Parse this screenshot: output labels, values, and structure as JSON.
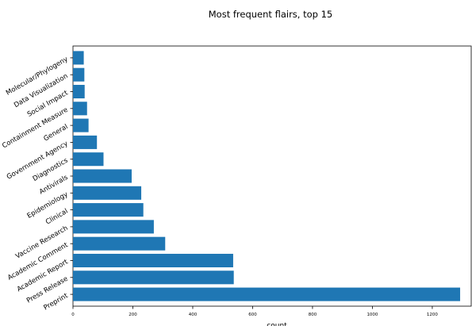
{
  "chart_data": {
    "type": "bar",
    "orientation": "horizontal",
    "title": "Most frequent flairs, top 15",
    "xlabel": "count",
    "ylabel": "",
    "categories": [
      "Preprint",
      "Press Release",
      "Academic Report",
      "Academic Comment",
      "Vaccine Research",
      "Clinical",
      "Epidemiology",
      "Antivirals",
      "Diagnostics",
      "Government Agency",
      "General",
      "Containment Measure",
      "Social Impact",
      "Data Visualization",
      "Molecular/Phylogeny"
    ],
    "values": [
      1293,
      537,
      535,
      308,
      270,
      235,
      228,
      196,
      102,
      80,
      52,
      47,
      39,
      38,
      36
    ],
    "xlim": [
      0,
      1330
    ],
    "xticks": [
      "0",
      "200",
      "400",
      "600",
      "800",
      "1000",
      "1200"
    ],
    "bar_color": "#1f77b4",
    "grid": false,
    "legend": "none"
  }
}
